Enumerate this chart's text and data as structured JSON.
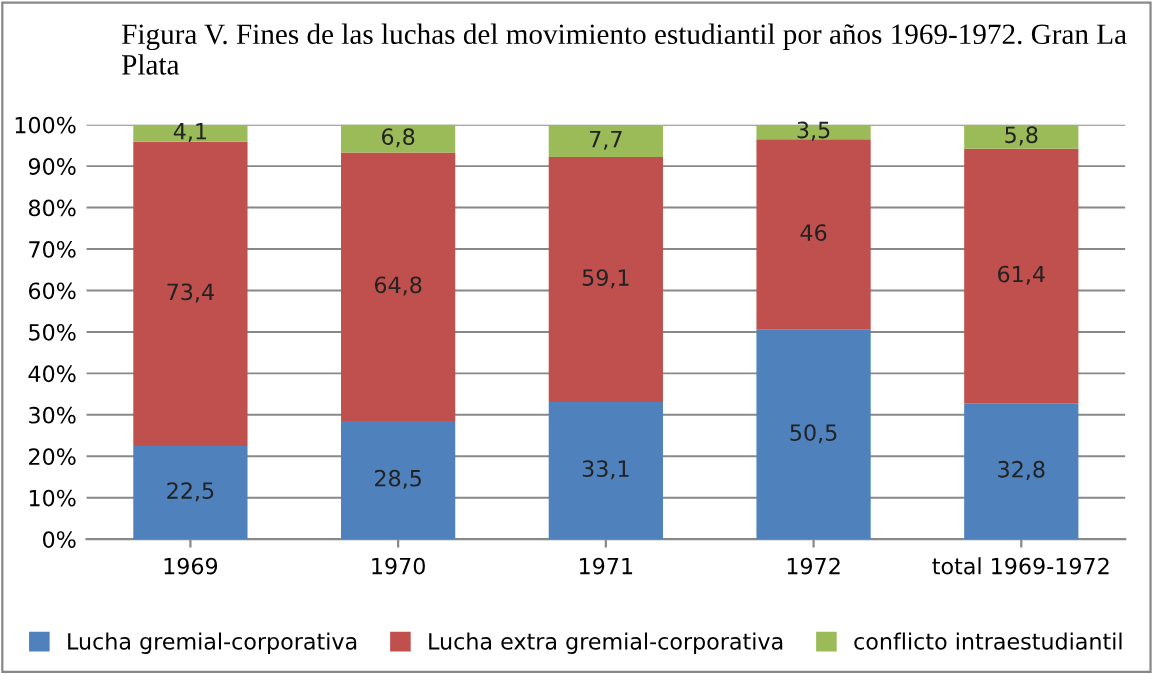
{
  "chart_data": {
    "type": "bar",
    "stacked": true,
    "title": "Figura V. Fines de las luchas del movimiento estudiantil por años 1969-1972. Gran La Plata",
    "categories": [
      "1969",
      "1970",
      "1971",
      "1972",
      "total 1969-1972"
    ],
    "series": [
      {
        "name": "Lucha gremial-corporativa",
        "color": "#4f81bd",
        "values": [
          22.5,
          28.5,
          33.1,
          50.5,
          32.8
        ],
        "value_labels": [
          "22,5",
          "28,5",
          "33,1",
          "50,5",
          "32,8"
        ]
      },
      {
        "name": "Lucha extra gremial-corporativa",
        "color": "#c0504d",
        "values": [
          73.4,
          64.8,
          59.1,
          46,
          61.4
        ],
        "value_labels": [
          "73,4",
          "64,8",
          "59,1",
          "46",
          "61,4"
        ]
      },
      {
        "name": "conflicto intraestudiantil",
        "color": "#9bbb59",
        "values": [
          4.1,
          6.8,
          7.7,
          3.5,
          5.8
        ],
        "value_labels": [
          "4,1",
          "6,8",
          "7,7",
          "3,5",
          "5,8"
        ]
      }
    ],
    "ylim": [
      0,
      100
    ],
    "yticks": [
      {
        "value": 0,
        "label": "0%"
      },
      {
        "value": 10,
        "label": "10%"
      },
      {
        "value": 20,
        "label": "20%"
      },
      {
        "value": 30,
        "label": "30%"
      },
      {
        "value": 40,
        "label": "40%"
      },
      {
        "value": 50,
        "label": "50%"
      },
      {
        "value": 60,
        "label": "60%"
      },
      {
        "value": 70,
        "label": "70%"
      },
      {
        "value": 80,
        "label": "80%"
      },
      {
        "value": 90,
        "label": "90%"
      },
      {
        "value": 100,
        "label": "100%"
      }
    ],
    "grid": "y",
    "legend": "bottom"
  }
}
